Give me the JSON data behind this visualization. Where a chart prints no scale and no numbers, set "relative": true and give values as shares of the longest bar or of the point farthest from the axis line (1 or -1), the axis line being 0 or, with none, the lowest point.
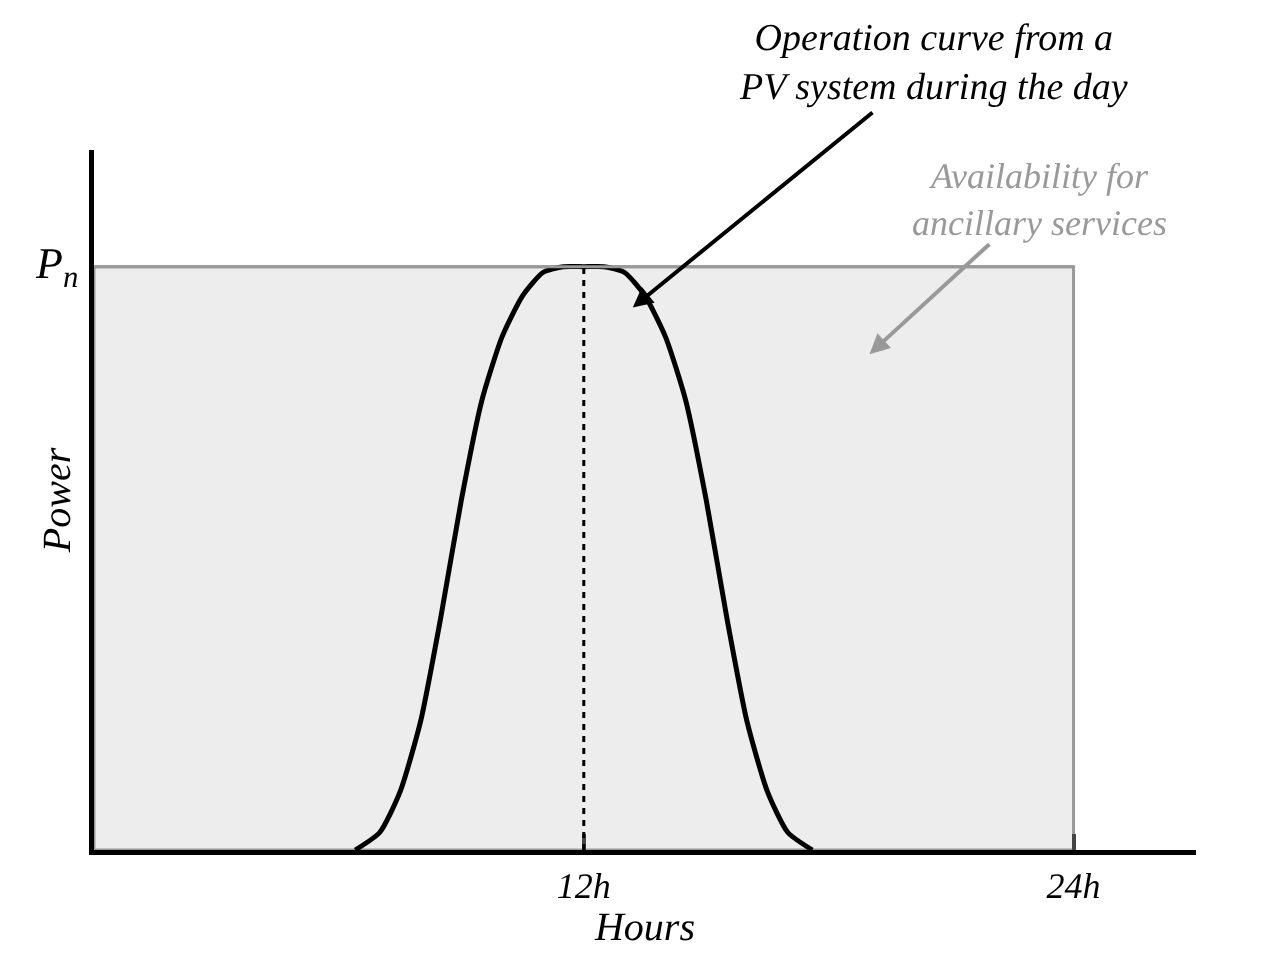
{
  "chart_data": {
    "type": "line",
    "relative": true,
    "xlabel": "Hours",
    "ylabel": "Power",
    "xlim": [
      0,
      27
    ],
    "xticks": [
      {
        "value": 12,
        "label": "12h"
      },
      {
        "value": 24,
        "label": "24h"
      }
    ],
    "x": [
      6.4,
      7,
      7.5,
      8,
      8.5,
      9,
      9.5,
      10,
      10.5,
      11,
      11.5,
      12,
      12.5,
      13,
      13.5,
      14,
      14.5,
      15,
      15.5,
      16,
      16.5,
      17,
      17.6
    ],
    "series": [
      {
        "color": "#000000",
        "values": [
          0,
          0.03,
          0.1,
          0.22,
          0.4,
          0.6,
          0.77,
          0.88,
          0.95,
          0.99,
          1,
          1,
          1,
          0.99,
          0.95,
          0.88,
          0.77,
          0.6,
          0.4,
          0.22,
          0.1,
          0.03,
          0
        ]
      }
    ],
    "ref_lines": [
      {
        "axis": "y",
        "value": 1,
        "label": "P$_{n}$",
        "color": "#999999",
        "line_style": "solid"
      },
      {
        "axis": "x",
        "value": 12,
        "color": "#000000",
        "line_style": "dotted"
      }
    ],
    "bands": [
      {
        "axis": "x",
        "from": 0,
        "to": 24,
        "label": "Availability for ancillary services",
        "color": "#999999"
      }
    ],
    "annotations": [
      {
        "text": "Operation curve from a PV system during the day",
        "x": 13.2,
        "y": 0.93
      }
    ],
    "grid": false,
    "marker": "none",
    "line_style": "solid"
  }
}
